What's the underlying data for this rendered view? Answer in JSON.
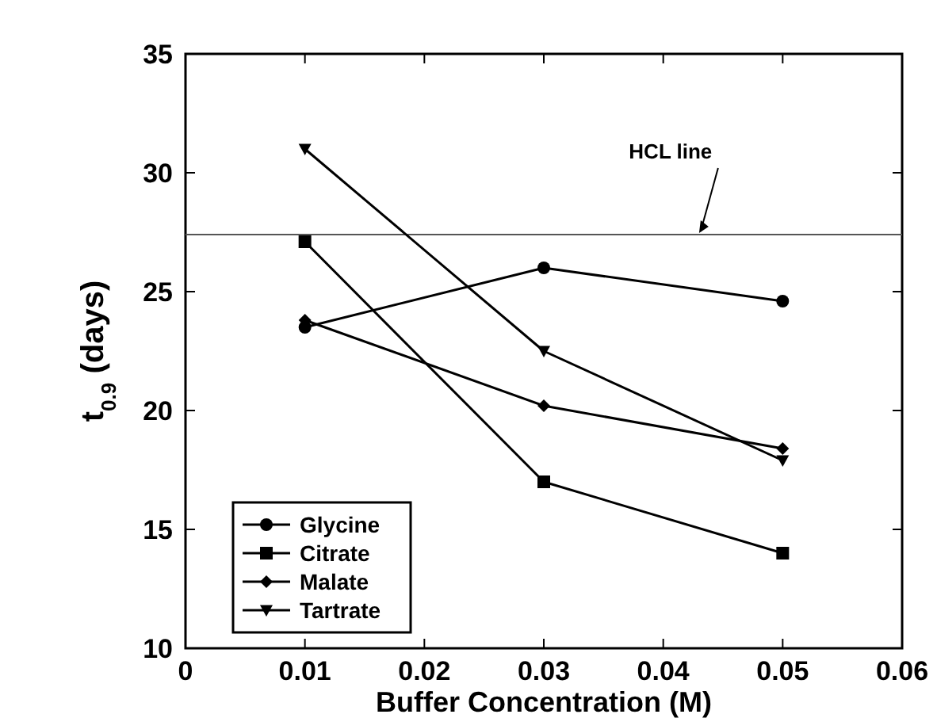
{
  "chart_data": {
    "type": "line",
    "xlabel": "Buffer Concentration (M)",
    "ylabel": "t$_{0.9}$ (days)",
    "x": [
      0.01,
      0.03,
      0.05
    ],
    "series": [
      {
        "name": "Glycine",
        "color": "#000000",
        "marker": "circle",
        "values": [
          23.5,
          26.0,
          24.6
        ]
      },
      {
        "name": "Citrate",
        "color": "#000000",
        "marker": "square",
        "values": [
          27.1,
          17.0,
          14.0
        ]
      },
      {
        "name": "Malate",
        "color": "#000000",
        "marker": "diamond",
        "values": [
          23.8,
          20.2,
          18.4
        ]
      },
      {
        "name": "Tartrate",
        "color": "#000000",
        "marker": "triangle",
        "values": [
          31.0,
          22.5,
          17.9
        ]
      }
    ],
    "xlim": [
      0,
      0.06
    ],
    "xticks": [
      0,
      0.01,
      0.02,
      0.03,
      0.04,
      0.05,
      0.06
    ],
    "ylim": [
      10,
      35
    ],
    "yticks": [
      10,
      15,
      20,
      25,
      30,
      35
    ],
    "ref_lines": [
      {
        "axis": "y",
        "value": 27.4,
        "color": "#555555"
      }
    ],
    "annotations": [
      {
        "text": "HCL line",
        "x": 0.043,
        "y": 27.4
      }
    ],
    "grid": false,
    "legend": "bottom left",
    "line_style": "solid"
  }
}
